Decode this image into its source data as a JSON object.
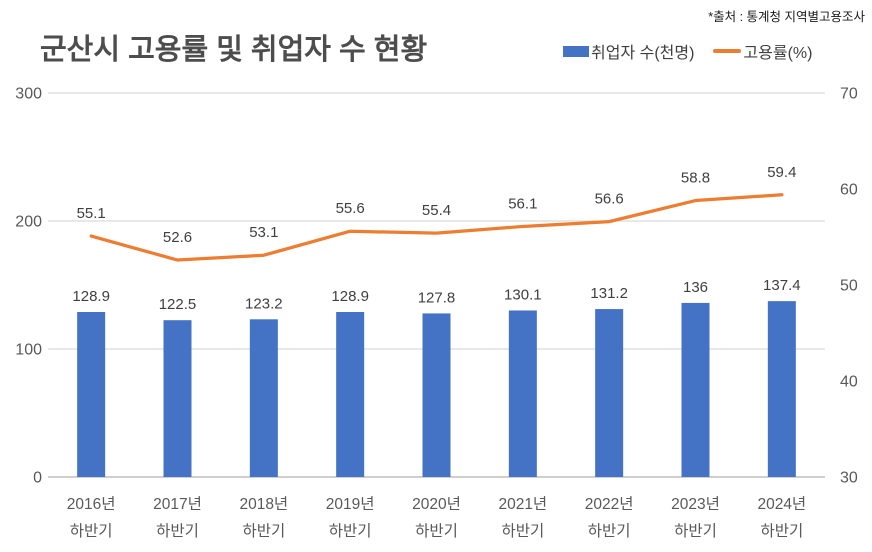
{
  "meta": {
    "source_note": "*출처 : 통계청 지역별고용조사"
  },
  "header": {
    "title": "군산시 고용률 및 취업자 수 현황"
  },
  "colors": {
    "bar": "#4472C4",
    "line": "#ED7D31",
    "gridline": "#D9D9D9",
    "baseline": "#BFBFBF",
    "tick_label": "#595959",
    "data_label": "#404040"
  },
  "chart_data": {
    "type": "bar+line combo",
    "title": "군산시 고용률 및 취업자 수 현황",
    "categories": [
      "2016년 하반기",
      "2017년 하반기",
      "2018년 하반기",
      "2019년 하반기",
      "2020년 하반기",
      "2021년 하반기",
      "2022년 하반기",
      "2023년 하반기",
      "2024년 하반기"
    ],
    "series": [
      {
        "name": "취업자 수(천명)",
        "type": "bar",
        "axis": "left",
        "color": "#4472C4",
        "values": [
          128.9,
          122.5,
          123.2,
          128.9,
          127.8,
          130.1,
          131.2,
          136,
          137.4
        ]
      },
      {
        "name": "고용률(%)",
        "type": "line",
        "axis": "right",
        "color": "#ED7D31",
        "values": [
          55.1,
          52.6,
          53.1,
          55.6,
          55.4,
          56.1,
          56.6,
          58.8,
          59.4
        ]
      }
    ],
    "left_axis": {
      "min": 0,
      "max": 300,
      "ticks": [
        0,
        100,
        200,
        300
      ]
    },
    "right_axis": {
      "min": 30,
      "max": 70,
      "ticks": [
        30,
        40,
        50,
        60,
        70
      ]
    },
    "grid": "horizontal gridlines at left-axis ticks",
    "legend_position": "top-right beside title",
    "data_labels": true
  }
}
